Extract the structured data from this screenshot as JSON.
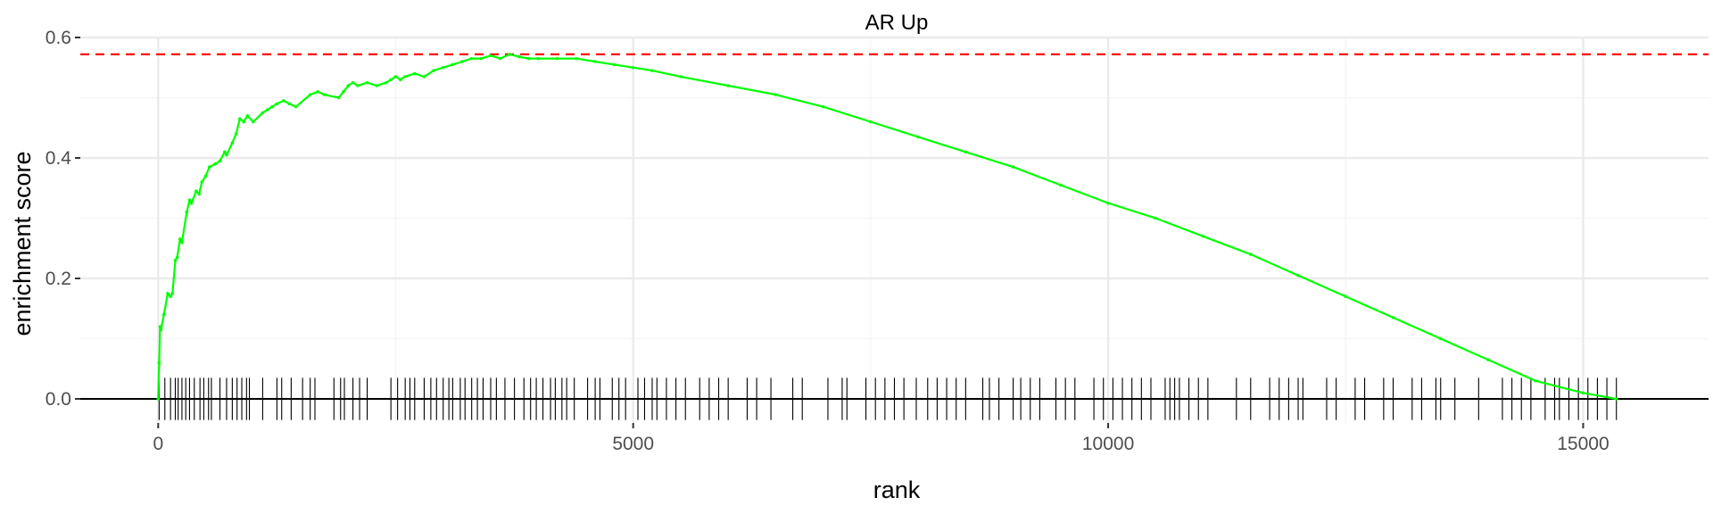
{
  "chart_data": {
    "type": "line",
    "title": "AR Up",
    "xlabel": "rank",
    "ylabel": "enrichment score",
    "xlim": [
      -820,
      16320
    ],
    "ylim": [
      -0.04,
      0.6
    ],
    "xticks": [
      0,
      5000,
      10000,
      15000
    ],
    "xtick_labels": [
      "0",
      "5000",
      "10000",
      "15000"
    ],
    "yticks": [
      0.0,
      0.2,
      0.4,
      0.6
    ],
    "ytick_labels": [
      "0.0",
      "0.2",
      "0.4",
      "0.6"
    ],
    "grid": true,
    "max_enrichment_score": 0.572,
    "colors": {
      "curve": "#00ff00",
      "threshold": "#ff0000",
      "hits": "#000000",
      "baseline": "#000000"
    },
    "series": [
      {
        "x": [
          0,
          10,
          20,
          30,
          60,
          100,
          130,
          150,
          180,
          200,
          230,
          250,
          300,
          330,
          350,
          400,
          430,
          460,
          500,
          540,
          600,
          650,
          700,
          720,
          780,
          820,
          860,
          900,
          940,
          1000,
          1100,
          1150,
          1200,
          1250,
          1320,
          1380,
          1450,
          1600,
          1680,
          1750,
          1900,
          1950,
          2000,
          2050,
          2100,
          2200,
          2300,
          2400,
          2450,
          2500,
          2550,
          2600,
          2700,
          2800,
          2900,
          3000,
          3100,
          3200,
          3300,
          3400,
          3500,
          3600,
          3700,
          3800,
          3900,
          4000,
          4200,
          4400,
          4600,
          4800,
          5000,
          5200,
          5500,
          6000,
          6500,
          7000,
          7500,
          8000,
          8500,
          9000,
          9500,
          10000,
          10500,
          11000,
          11500,
          12000,
          12500,
          13000,
          13500,
          14000,
          14500,
          15000,
          15350
        ],
        "y": [
          0.0,
          0.06,
          0.12,
          0.115,
          0.14,
          0.175,
          0.17,
          0.175,
          0.23,
          0.235,
          0.265,
          0.26,
          0.31,
          0.33,
          0.325,
          0.345,
          0.34,
          0.36,
          0.37,
          0.385,
          0.39,
          0.395,
          0.41,
          0.405,
          0.425,
          0.44,
          0.465,
          0.46,
          0.47,
          0.46,
          0.475,
          0.48,
          0.485,
          0.49,
          0.495,
          0.49,
          0.485,
          0.505,
          0.51,
          0.505,
          0.5,
          0.51,
          0.52,
          0.525,
          0.52,
          0.525,
          0.52,
          0.525,
          0.53,
          0.535,
          0.53,
          0.535,
          0.54,
          0.535,
          0.545,
          0.55,
          0.555,
          0.56,
          0.565,
          0.565,
          0.57,
          0.565,
          0.572,
          0.568,
          0.565,
          0.565,
          0.565,
          0.565,
          0.56,
          0.555,
          0.55,
          0.545,
          0.535,
          0.52,
          0.505,
          0.485,
          0.46,
          0.435,
          0.41,
          0.385,
          0.355,
          0.325,
          0.3,
          0.27,
          0.24,
          0.205,
          0.17,
          0.135,
          0.1,
          0.065,
          0.03,
          0.01,
          0.0
        ]
      }
    ],
    "hit_ranks": [
      10,
      70,
      130,
      180,
      210,
      250,
      290,
      330,
      380,
      440,
      480,
      530,
      560,
      650,
      720,
      780,
      830,
      880,
      930,
      960,
      1100,
      1250,
      1300,
      1400,
      1520,
      1600,
      1650,
      1850,
      1920,
      1960,
      2050,
      2120,
      2200,
      2450,
      2520,
      2600,
      2650,
      2700,
      2800,
      2870,
      2930,
      3000,
      3060,
      3100,
      3180,
      3230,
      3300,
      3360,
      3420,
      3500,
      3560,
      3650,
      3750,
      3850,
      3920,
      3980,
      4050,
      4130,
      4180,
      4250,
      4300,
      4380,
      4520,
      4600,
      4650,
      4780,
      4850,
      4920,
      5050,
      5120,
      5200,
      5250,
      5350,
      5450,
      5550,
      5700,
      5800,
      5900,
      6000,
      6200,
      6300,
      6450,
      6680,
      6780,
      7050,
      7200,
      7250,
      7450,
      7550,
      7650,
      7750,
      7850,
      7980,
      8100,
      8200,
      8300,
      8400,
      8500,
      8680,
      8750,
      8850,
      9000,
      9080,
      9180,
      9280,
      9450,
      9550,
      9650,
      9850,
      9950,
      10050,
      10150,
      10250,
      10350,
      10450,
      10600,
      10650,
      10700,
      10750,
      10850,
      10950,
      11050,
      11350,
      11500,
      11700,
      11800,
      11900,
      12000,
      12050,
      12300,
      12400,
      12600,
      12700,
      12900,
      13000,
      13200,
      13300,
      13450,
      13500,
      13650,
      13900,
      14150,
      14250,
      14350,
      14450,
      14600,
      14700,
      14750,
      14850,
      14950,
      15050,
      15150,
      15250,
      15350
    ]
  }
}
